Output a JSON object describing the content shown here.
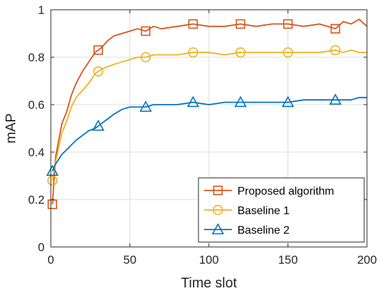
{
  "chart_data": {
    "type": "line",
    "xlabel": "Time slot",
    "ylabel": "mAP",
    "xlim": [
      0,
      200
    ],
    "ylim": [
      0,
      1
    ],
    "xticks": [
      0,
      50,
      100,
      150,
      200
    ],
    "yticks": [
      0,
      0.2,
      0.4,
      0.6,
      0.8,
      1
    ],
    "xtick_labels": [
      "0",
      "50",
      "100",
      "150",
      "200"
    ],
    "ytick_labels": [
      "0",
      "0.2",
      "0.4",
      "0.6",
      "0.8",
      "1"
    ],
    "grid": true,
    "legend_position": "bottom-right",
    "series": [
      {
        "name": "Proposed algorithm",
        "color": "#D95319",
        "marker": "square",
        "marker_x": [
          1,
          30,
          60,
          90,
          120,
          150,
          180
        ],
        "x": [
          1,
          3,
          5,
          7,
          10,
          13,
          16,
          20,
          24,
          28,
          32,
          36,
          40,
          45,
          50,
          55,
          60,
          65,
          70,
          80,
          90,
          100,
          110,
          120,
          130,
          140,
          150,
          160,
          170,
          180,
          185,
          190,
          195,
          200
        ],
        "y": [
          0.18,
          0.38,
          0.45,
          0.52,
          0.57,
          0.64,
          0.69,
          0.74,
          0.78,
          0.82,
          0.84,
          0.87,
          0.89,
          0.9,
          0.91,
          0.92,
          0.91,
          0.93,
          0.92,
          0.93,
          0.94,
          0.93,
          0.93,
          0.94,
          0.93,
          0.94,
          0.94,
          0.93,
          0.94,
          0.92,
          0.95,
          0.94,
          0.96,
          0.93
        ]
      },
      {
        "name": "Baseline 1",
        "color": "#EDB120",
        "marker": "circle",
        "marker_x": [
          1,
          30,
          60,
          90,
          120,
          150,
          180
        ],
        "x": [
          1,
          3,
          5,
          7,
          10,
          13,
          16,
          20,
          24,
          28,
          32,
          36,
          40,
          45,
          50,
          55,
          60,
          65,
          70,
          80,
          90,
          100,
          110,
          120,
          130,
          140,
          150,
          160,
          170,
          180,
          185,
          190,
          195,
          200
        ],
        "y": [
          0.28,
          0.36,
          0.42,
          0.48,
          0.53,
          0.59,
          0.63,
          0.66,
          0.69,
          0.73,
          0.75,
          0.76,
          0.77,
          0.78,
          0.79,
          0.8,
          0.8,
          0.81,
          0.81,
          0.81,
          0.82,
          0.82,
          0.81,
          0.82,
          0.82,
          0.82,
          0.82,
          0.82,
          0.82,
          0.83,
          0.82,
          0.83,
          0.82,
          0.82
        ]
      },
      {
        "name": "Baseline 2",
        "color": "#0072BD",
        "marker": "triangle",
        "marker_x": [
          1,
          30,
          60,
          90,
          120,
          150,
          180
        ],
        "x": [
          1,
          3,
          5,
          7,
          10,
          13,
          16,
          20,
          24,
          28,
          32,
          36,
          40,
          45,
          50,
          55,
          60,
          65,
          70,
          80,
          90,
          100,
          110,
          120,
          130,
          140,
          150,
          160,
          170,
          180,
          185,
          190,
          195,
          200
        ],
        "y": [
          0.32,
          0.35,
          0.37,
          0.39,
          0.41,
          0.43,
          0.45,
          0.47,
          0.49,
          0.5,
          0.52,
          0.54,
          0.56,
          0.58,
          0.59,
          0.59,
          0.59,
          0.6,
          0.6,
          0.6,
          0.61,
          0.6,
          0.61,
          0.61,
          0.61,
          0.61,
          0.61,
          0.62,
          0.62,
          0.62,
          0.62,
          0.62,
          0.63,
          0.63
        ]
      }
    ]
  }
}
